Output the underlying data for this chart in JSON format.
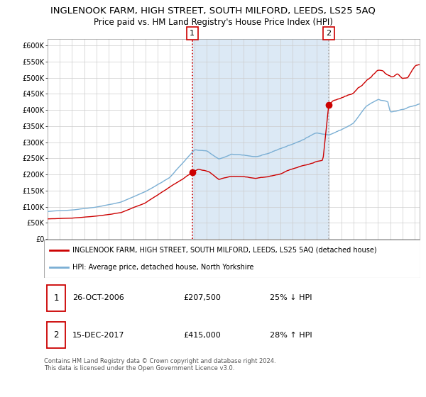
{
  "title": "INGLENOOK FARM, HIGH STREET, SOUTH MILFORD, LEEDS, LS25 5AQ",
  "subtitle": "Price paid vs. HM Land Registry's House Price Index (HPI)",
  "ylim": [
    0,
    620000
  ],
  "yticks": [
    0,
    50000,
    100000,
    150000,
    200000,
    250000,
    300000,
    350000,
    400000,
    450000,
    500000,
    550000,
    600000
  ],
  "sale1_date": 2006.82,
  "sale1_price": 207500,
  "sale2_date": 2017.96,
  "sale2_price": 415000,
  "xmin": 1995.0,
  "xmax": 2025.4,
  "hpi_color": "#7bafd4",
  "price_color": "#cc0000",
  "shade_color": "#dce9f5",
  "plot_bg": "#ffffff",
  "grid_color": "#cccccc",
  "legend1_text": "INGLENOOK FARM, HIGH STREET, SOUTH MILFORD, LEEDS, LS25 5AQ (detached house)",
  "legend2_text": "HPI: Average price, detached house, North Yorkshire",
  "footer": "Contains HM Land Registry data © Crown copyright and database right 2024.\nThis data is licensed under the Open Government Licence v3.0.",
  "title_fontsize": 9.5,
  "subtitle_fontsize": 8.5,
  "tick_fontsize": 7,
  "legend_fontsize": 7,
  "annotation_fontsize": 8,
  "footer_fontsize": 6,
  "hpi_key_points": [
    [
      1995,
      85000
    ],
    [
      1997,
      90000
    ],
    [
      1999,
      100000
    ],
    [
      2001,
      115000
    ],
    [
      2003,
      148000
    ],
    [
      2005,
      192000
    ],
    [
      2007,
      278000
    ],
    [
      2008,
      275000
    ],
    [
      2009,
      248000
    ],
    [
      2010,
      262000
    ],
    [
      2011,
      260000
    ],
    [
      2012,
      255000
    ],
    [
      2013,
      262000
    ],
    [
      2014,
      278000
    ],
    [
      2015,
      292000
    ],
    [
      2016,
      308000
    ],
    [
      2017,
      328000
    ],
    [
      2018,
      322000
    ],
    [
      2019,
      338000
    ],
    [
      2020,
      358000
    ],
    [
      2021,
      408000
    ],
    [
      2022,
      428000
    ],
    [
      2022.8,
      420000
    ],
    [
      2023,
      388000
    ],
    [
      2023.5,
      392000
    ],
    [
      2024,
      398000
    ],
    [
      2024.5,
      405000
    ],
    [
      2025.4,
      415000
    ]
  ],
  "price_key_points": [
    [
      1995,
      62000
    ],
    [
      1997,
      65000
    ],
    [
      1999,
      72000
    ],
    [
      2001,
      82000
    ],
    [
      2003,
      112000
    ],
    [
      2005,
      162000
    ],
    [
      2006.5,
      198000
    ],
    [
      2006.82,
      207500
    ],
    [
      2007.3,
      218000
    ],
    [
      2008.2,
      208000
    ],
    [
      2009,
      182000
    ],
    [
      2010,
      192000
    ],
    [
      2011,
      192000
    ],
    [
      2012,
      188000
    ],
    [
      2013,
      193000
    ],
    [
      2014,
      202000
    ],
    [
      2015,
      218000
    ],
    [
      2016,
      232000
    ],
    [
      2017.5,
      248000
    ],
    [
      2017.96,
      415000
    ],
    [
      2018.3,
      435000
    ],
    [
      2019,
      445000
    ],
    [
      2020,
      458000
    ],
    [
      2021,
      492000
    ],
    [
      2022,
      532000
    ],
    [
      2022.4,
      528000
    ],
    [
      2022.7,
      518000
    ],
    [
      2023.2,
      510000
    ],
    [
      2023.6,
      522000
    ],
    [
      2024,
      508000
    ],
    [
      2024.4,
      512000
    ],
    [
      2025.0,
      545000
    ],
    [
      2025.4,
      548000
    ]
  ]
}
